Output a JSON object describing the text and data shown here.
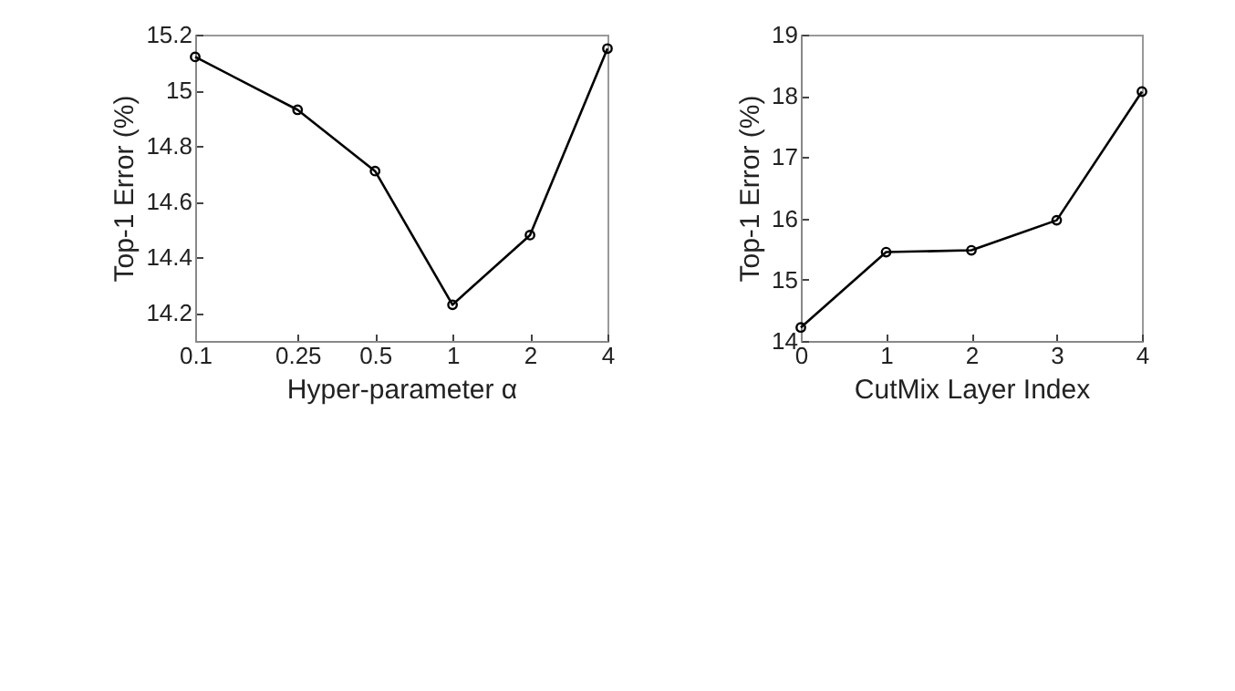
{
  "chart_data": [
    {
      "type": "line",
      "x": [
        0.1,
        0.25,
        0.5,
        1,
        2,
        4
      ],
      "values": [
        15.12,
        14.93,
        14.71,
        14.23,
        14.48,
        15.15
      ],
      "color": "#000000",
      "xlabel": "Hyper-parameter α",
      "ylabel": "Top-1 Error (%)",
      "log": "x",
      "xlim": [
        0.1,
        4
      ],
      "xticks": [
        0.1,
        0.25,
        0.5,
        1,
        2,
        4
      ],
      "ylim": [
        14.1,
        15.2
      ],
      "yticks": [
        14.2,
        14.4,
        14.6,
        14.8,
        15,
        15.2
      ],
      "marker": "circle",
      "grid": false
    },
    {
      "type": "line",
      "x": [
        0,
        1,
        2,
        3,
        4
      ],
      "values": [
        14.22,
        15.45,
        15.48,
        15.97,
        18.07
      ],
      "color": "#000000",
      "xlabel": "CutMix Layer Index",
      "ylabel": "Top-1 Error (%)",
      "xlim": [
        0,
        4
      ],
      "xticks": [
        0,
        1,
        2,
        3,
        4
      ],
      "ylim": [
        14,
        19
      ],
      "yticks": [
        14,
        15,
        16,
        17,
        18,
        19
      ],
      "marker": "circle",
      "grid": false
    }
  ]
}
